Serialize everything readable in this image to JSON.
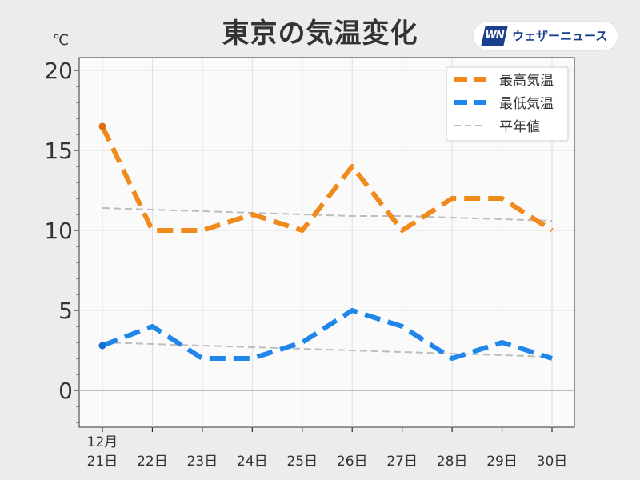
{
  "title": "東京の気温変化",
  "logo": {
    "mark": "WN",
    "text": "ウェザーニュース"
  },
  "chart_data": {
    "type": "line",
    "title": "東京の気温変化",
    "unit": "℃",
    "x_month_label": "12月",
    "categories": [
      "21日",
      "22日",
      "23日",
      "24日",
      "25日",
      "26日",
      "27日",
      "28日",
      "29日",
      "30日"
    ],
    "ylim": [
      -2.3,
      20.8
    ],
    "yticks": [
      0,
      5,
      10,
      15,
      20
    ],
    "grid": true,
    "legend_position": "top-right",
    "series": [
      {
        "name": "最高気温",
        "color": "#f08a1c",
        "style": "dashed-thick",
        "values": [
          16.5,
          10,
          10,
          11,
          10,
          14,
          10,
          12,
          12,
          10
        ]
      },
      {
        "name": "最低気温",
        "color": "#1f86ea",
        "style": "dashed-thick",
        "values": [
          2.8,
          4,
          2,
          2,
          3,
          5,
          4,
          2,
          3,
          2
        ]
      },
      {
        "name": "平年値",
        "color": "#bdbdbd",
        "style": "dashed-thin",
        "values": [
          11.4,
          11.3,
          11.2,
          11.1,
          11.0,
          10.9,
          10.9,
          10.8,
          10.7,
          10.6
        ]
      },
      {
        "name": "",
        "color": "#bdbdbd",
        "style": "dashed-thin",
        "values": [
          3.0,
          2.9,
          2.8,
          2.7,
          2.6,
          2.5,
          2.4,
          2.3,
          2.2,
          2.1
        ]
      }
    ]
  }
}
